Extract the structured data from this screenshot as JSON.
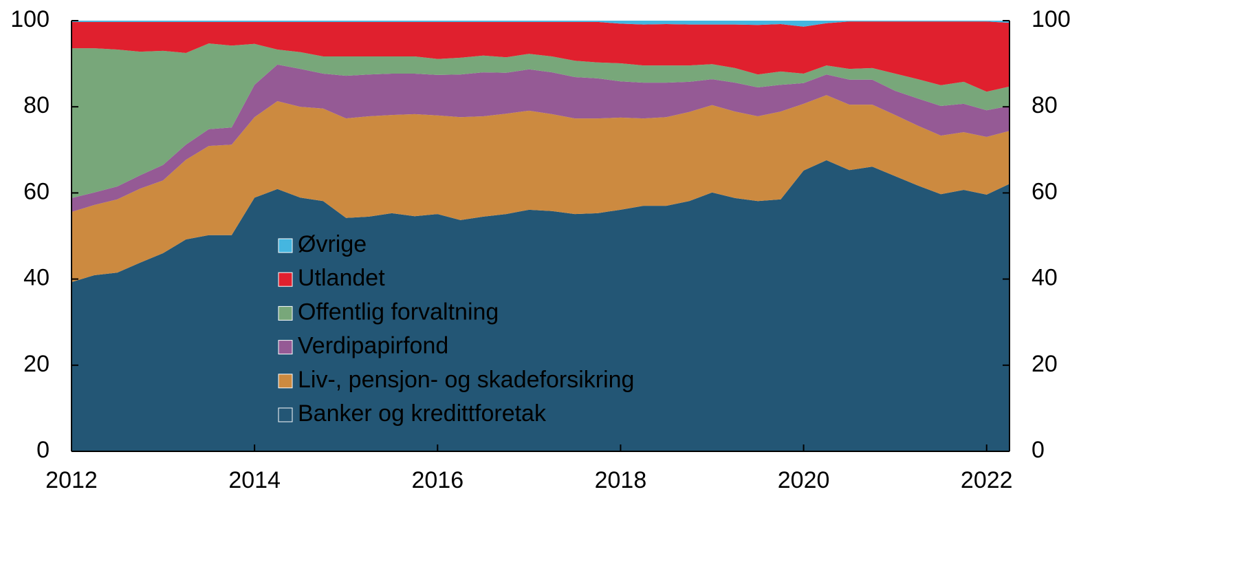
{
  "chart_data": {
    "type": "stacked_area",
    "x": [
      2012,
      2012.25,
      2012.5,
      2012.75,
      2013,
      2013.25,
      2013.5,
      2013.75,
      2014,
      2014.25,
      2014.5,
      2014.75,
      2015,
      2015.25,
      2015.5,
      2015.75,
      2016,
      2016.25,
      2016.5,
      2016.75,
      2017,
      2017.25,
      2017.5,
      2017.75,
      2018,
      2018.25,
      2018.5,
      2018.75,
      2019,
      2019.25,
      2019.5,
      2019.75,
      2020,
      2020.25,
      2020.5,
      2020.75,
      2021,
      2021.25,
      2021.5,
      2021.75,
      2022,
      2022.25
    ],
    "xlim": [
      2012,
      2022.25
    ],
    "xticks": [
      2012,
      2014,
      2016,
      2018,
      2020,
      2022
    ],
    "ylim": [
      0,
      100
    ],
    "yticks": [
      0,
      20,
      40,
      60,
      80,
      100
    ],
    "y2lim": [
      0,
      100
    ],
    "y2ticks": [
      0,
      20,
      40,
      60,
      80,
      100
    ],
    "series": [
      {
        "name": "Banker og kredittforetak",
        "color": "#235675",
        "values": [
          39.3,
          40.9,
          41.5,
          43.8,
          46.0,
          49.2,
          50.2,
          50.2,
          58.9,
          60.9,
          58.9,
          58.1,
          54.2,
          54.5,
          55.3,
          54.6,
          55.1,
          53.7,
          54.5,
          55.1,
          56.1,
          55.8,
          55.1,
          55.3,
          56.1,
          57.0,
          57.0,
          58.1,
          60.1,
          58.8,
          58.1,
          58.5,
          65.2,
          67.6,
          65.3,
          66.1,
          63.9,
          61.7,
          59.7,
          60.7,
          59.6,
          62.1
        ]
      },
      {
        "name": "Liv-, pensjon- og skadeforsikring",
        "color": "#cc8a40",
        "values": [
          16.3,
          16.3,
          17.0,
          17.2,
          16.9,
          18.5,
          20.7,
          21.0,
          18.7,
          20.4,
          21.1,
          21.5,
          23.1,
          23.3,
          22.8,
          23.7,
          22.9,
          23.9,
          23.3,
          23.3,
          23.0,
          22.5,
          22.2,
          22.0,
          21.4,
          20.3,
          20.6,
          20.7,
          20.3,
          20.1,
          19.7,
          20.4,
          15.5,
          15.1,
          15.2,
          14.4,
          14.2,
          13.9,
          13.6,
          13.4,
          13.4,
          12.3
        ]
      },
      {
        "name": "Verdipapirfond",
        "color": "#955a95",
        "values": [
          3.2,
          2.9,
          3.0,
          3.1,
          3.6,
          3.5,
          3.9,
          4.0,
          7.5,
          8.5,
          8.8,
          8.1,
          9.9,
          9.7,
          9.6,
          9.4,
          9.4,
          9.9,
          10.2,
          9.5,
          9.6,
          9.7,
          9.6,
          9.3,
          8.4,
          8.3,
          8.0,
          7.0,
          6.0,
          6.7,
          6.7,
          6.2,
          4.8,
          4.8,
          5.8,
          5.8,
          5.6,
          6.3,
          6.9,
          6.6,
          6.2,
          5.8
        ]
      },
      {
        "name": "Offentlig forvaltning",
        "color": "#78a77a",
        "values": [
          34.8,
          33.5,
          31.8,
          28.7,
          26.5,
          21.3,
          19.9,
          19.0,
          9.5,
          3.5,
          3.9,
          4.0,
          4.5,
          4.2,
          4.0,
          4.0,
          3.7,
          3.9,
          3.9,
          3.6,
          3.6,
          3.7,
          3.8,
          3.7,
          4.2,
          4.0,
          4.0,
          3.8,
          3.5,
          3.4,
          3.0,
          3.1,
          2.2,
          2.1,
          2.5,
          2.7,
          4.0,
          4.5,
          4.8,
          5.1,
          4.3,
          4.5
        ]
      },
      {
        "name": "Utlandet",
        "color": "#e0202e",
        "values": [
          6.1,
          6.1,
          6.4,
          6.9,
          6.7,
          7.2,
          5.0,
          5.5,
          5.1,
          6.4,
          7.0,
          8.0,
          8.0,
          8.0,
          8.0,
          8.0,
          8.6,
          8.3,
          7.8,
          8.2,
          7.4,
          8.0,
          9.0,
          9.4,
          9.2,
          9.5,
          9.6,
          9.5,
          9.2,
          10.1,
          11.5,
          11.0,
          10.9,
          9.8,
          11.0,
          10.8,
          12.1,
          13.4,
          14.8,
          14.0,
          16.3,
          14.8
        ]
      },
      {
        "name": "Øvrige",
        "color": "#45b6e0",
        "values": [
          0.3,
          0.3,
          0.3,
          0.3,
          0.3,
          0.3,
          0.3,
          0.3,
          0.3,
          0.3,
          0.3,
          0.3,
          0.3,
          0.3,
          0.3,
          0.3,
          0.3,
          0.3,
          0.3,
          0.3,
          0.3,
          0.3,
          0.3,
          0.3,
          0.7,
          0.9,
          0.8,
          0.9,
          0.9,
          0.9,
          1.0,
          0.8,
          1.4,
          0.6,
          0.2,
          0.2,
          0.2,
          0.2,
          0.2,
          0.2,
          0.2,
          0.5
        ]
      }
    ],
    "legend": "lower-center"
  }
}
